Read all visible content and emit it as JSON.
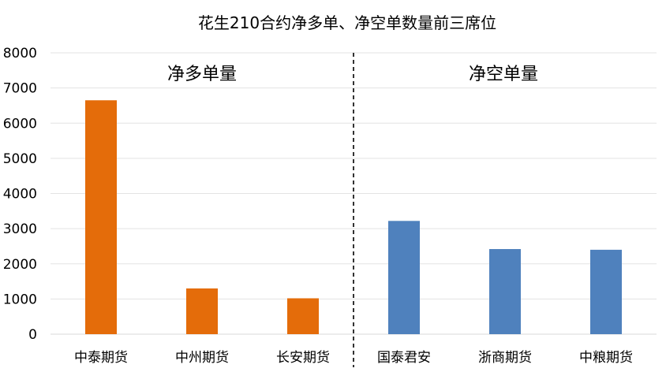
{
  "chart_data": {
    "type": "bar",
    "title": "花生210合约净多单、净空单数量前三席位",
    "categories": [
      "中泰期货",
      "中州期货",
      "长安期货",
      "国泰君安",
      "浙商期货",
      "中粮期货"
    ],
    "values": [
      6650,
      1300,
      1020,
      3220,
      2420,
      2400
    ],
    "bar_colors": [
      "#E46C0A",
      "#E46C0A",
      "#E46C0A",
      "#4F81BD",
      "#4F81BD",
      "#4F81BD"
    ],
    "ylim": [
      0,
      8000
    ],
    "yticks": [
      "0",
      "1000",
      "2000",
      "3000",
      "4000",
      "5000",
      "6000",
      "7000",
      "8000"
    ],
    "grid": true,
    "section_labels": [
      "净多单量",
      "净空单量"
    ],
    "divider": "dashed line between 长安期货 and 国泰君安"
  }
}
